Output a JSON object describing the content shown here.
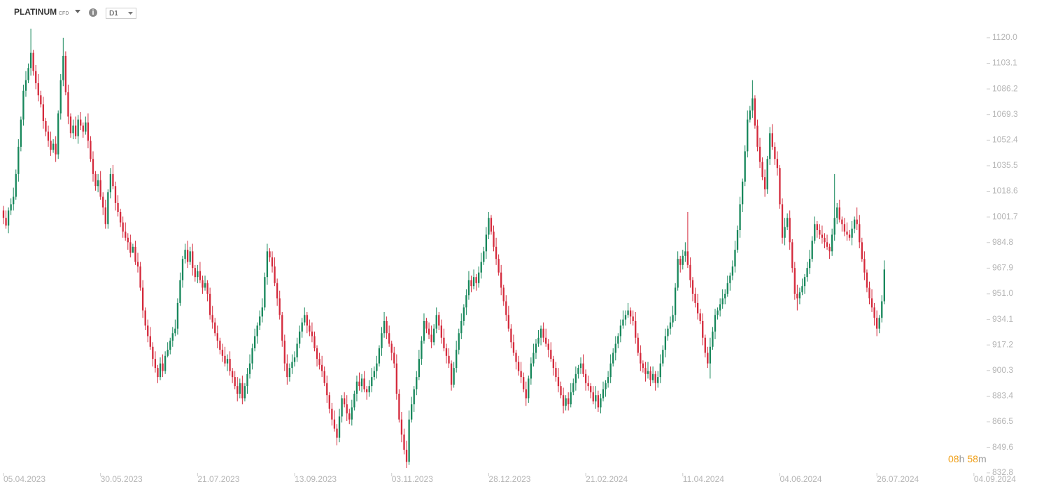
{
  "header": {
    "symbol": "PLATINUM",
    "instrument_type": "CFD",
    "timeframe": "D1"
  },
  "countdown": {
    "hours": "08",
    "hours_unit": "h",
    "minutes": "58",
    "minutes_unit": "m"
  },
  "chart_data": {
    "type": "candlestick",
    "up_color": "#17875b",
    "down_color": "#d42a3c",
    "xlim": [
      -1.4,
      393.7
    ],
    "xticks": [
      {
        "value": 0,
        "label": "05.04.2023"
      },
      {
        "value": 39,
        "label": "30.05.2023"
      },
      {
        "value": 78,
        "label": "21.07.2023"
      },
      {
        "value": 117,
        "label": "13.09.2023"
      },
      {
        "value": 156,
        "label": "03.11.2023"
      },
      {
        "value": 195,
        "label": "28.12.2023"
      },
      {
        "value": 234,
        "label": "21.02.2024"
      },
      {
        "value": 273,
        "label": "11.04.2024"
      },
      {
        "value": 312,
        "label": "04.06.2024"
      },
      {
        "value": 351,
        "label": "26.07.2024"
      },
      {
        "value": 390,
        "label": "04.09.2024"
      }
    ],
    "ylim": [
      832.8,
      1144.9
    ],
    "yticks": [
      {
        "value": 1120,
        "label": "1120.0"
      },
      {
        "value": 1103.1,
        "label": "1103.1"
      },
      {
        "value": 1086.2,
        "label": "1086.2"
      },
      {
        "value": 1069.3,
        "label": "1069.3"
      },
      {
        "value": 1052.4,
        "label": "1052.4"
      },
      {
        "value": 1035.5,
        "label": "1035.5"
      },
      {
        "value": 1018.6,
        "label": "1018.6"
      },
      {
        "value": 1001.7,
        "label": "1001.7"
      },
      {
        "value": 984.8,
        "label": "984.8"
      },
      {
        "value": 967.9,
        "label": "967.9"
      },
      {
        "value": 951,
        "label": "951.0"
      },
      {
        "value": 934.1,
        "label": "934.1"
      },
      {
        "value": 917.2,
        "label": "917.2"
      },
      {
        "value": 900.3,
        "label": "900.3"
      },
      {
        "value": 883.4,
        "label": "883.4"
      },
      {
        "value": 866.5,
        "label": "866.5"
      },
      {
        "value": 849.6,
        "label": "849.6"
      },
      {
        "value": 832.8,
        "label": "832.8"
      }
    ],
    "open": [
      1006,
      1001,
      996,
      1006,
      1010,
      1015,
      1030,
      1048,
      1066,
      1085,
      1092,
      1100,
      1110,
      1098,
      1090,
      1082,
      1076,
      1065,
      1058,
      1052,
      1046,
      1050,
      1043,
      1070,
      1092,
      1108,
      1084,
      1068,
      1057,
      1062,
      1055,
      1066,
      1062,
      1058,
      1064,
      1052,
      1040,
      1030,
      1022,
      1026,
      1015,
      1008,
      997,
      1018,
      1030,
      1022,
      1011,
      1005,
      998,
      992,
      988,
      985,
      978,
      982,
      972,
      969,
      955,
      940,
      930,
      923,
      916,
      908,
      902,
      896,
      905,
      900,
      910,
      914,
      920,
      925,
      928,
      945,
      960,
      974,
      980,
      972,
      979,
      968,
      962,
      966,
      960,
      955,
      958,
      951,
      937,
      932,
      925,
      920,
      914,
      910,
      905,
      908,
      900,
      896,
      890,
      885,
      892,
      882,
      890,
      898,
      905,
      915,
      923,
      930,
      936,
      942,
      962,
      979,
      975,
      969,
      958,
      948,
      937,
      920,
      905,
      896,
      902,
      906,
      909,
      918,
      926,
      932,
      937,
      930,
      926,
      923,
      915,
      908,
      904,
      900,
      892,
      884,
      875,
      868,
      862,
      856,
      870,
      882,
      878,
      872,
      868,
      876,
      885,
      893,
      890,
      895,
      888,
      886,
      890,
      896,
      900,
      905,
      915,
      925,
      933,
      925,
      918,
      912,
      905,
      885,
      868,
      858,
      848,
      840,
      868,
      878,
      888,
      896,
      908,
      920,
      933,
      928,
      924,
      919,
      928,
      937,
      930,
      922,
      915,
      910,
      905,
      891,
      902,
      914,
      925,
      933,
      942,
      950,
      960,
      956,
      962,
      958,
      965,
      972,
      979,
      990,
      1001,
      992,
      982,
      974,
      965,
      955,
      946,
      937,
      928,
      919,
      912,
      906,
      900,
      896,
      888,
      882,
      895,
      905,
      912,
      918,
      922,
      928,
      922,
      918,
      914,
      908,
      902,
      896,
      890,
      884,
      877,
      882,
      878,
      886,
      892,
      898,
      902,
      905,
      898,
      892,
      890,
      886,
      880,
      884,
      876,
      882,
      888,
      892,
      896,
      905,
      912,
      918,
      923,
      930,
      934,
      937,
      940,
      936,
      933,
      922,
      912,
      905,
      902,
      898,
      900,
      894,
      898,
      892,
      896,
      905,
      914,
      923,
      928,
      932,
      937,
      955,
      974,
      970,
      976,
      979,
      970,
      960,
      951,
      945,
      938,
      933,
      922,
      912,
      905,
      916,
      926,
      937,
      940,
      944,
      948,
      951,
      958,
      963,
      969,
      980,
      993,
      1010,
      1025,
      1045,
      1066,
      1072,
      1080,
      1062,
      1048,
      1038,
      1028,
      1020,
      1040,
      1057,
      1048,
      1040,
      1034,
      1010,
      988,
      995,
      1001,
      985,
      968,
      951,
      948,
      952,
      956,
      962,
      968,
      974,
      986,
      997,
      993,
      990,
      988,
      985,
      982,
      979,
      990,
      1001,
      1008,
      1000,
      997,
      992,
      990,
      988,
      994,
      1000,
      997,
      985,
      974,
      965,
      955,
      948,
      942,
      935,
      928,
      935,
      946
    ],
    "high": [
      1009,
      1006,
      1008,
      1014,
      1021,
      1033,
      1053,
      1068,
      1089,
      1098,
      1103,
      1126,
      1112,
      1102,
      1096,
      1085,
      1081,
      1067,
      1062,
      1058,
      1053,
      1055,
      1072,
      1096,
      1120,
      1111,
      1089,
      1070,
      1066,
      1068,
      1069,
      1071,
      1064,
      1068,
      1070,
      1055,
      1045,
      1032,
      1030,
      1032,
      1018,
      1013,
      1020,
      1034,
      1036,
      1025,
      1016,
      1007,
      1002,
      998,
      991,
      990,
      984,
      986,
      978,
      972,
      960,
      942,
      934,
      929,
      919,
      913,
      904,
      909,
      911,
      913,
      919,
      922,
      929,
      934,
      948,
      965,
      976,
      984,
      986,
      982,
      984,
      970,
      970,
      972,
      963,
      963,
      960,
      955,
      943,
      935,
      930,
      922,
      918,
      916,
      911,
      913,
      902,
      900,
      896,
      895,
      897,
      892,
      902,
      911,
      918,
      928,
      932,
      940,
      948,
      965,
      984,
      981,
      979,
      975,
      961,
      953,
      939,
      924,
      911,
      905,
      911,
      913,
      922,
      930,
      935,
      942,
      939,
      934,
      932,
      926,
      917,
      912,
      910,
      903,
      897,
      886,
      879,
      874,
      865,
      875,
      884,
      886,
      884,
      875,
      881,
      887,
      897,
      899,
      898,
      900,
      890,
      894,
      902,
      903,
      910,
      917,
      929,
      939,
      936,
      930,
      920,
      916,
      911,
      888,
      873,
      862,
      854,
      874,
      883,
      890,
      900,
      914,
      923,
      938,
      935,
      932,
      930,
      931,
      942,
      939,
      934,
      928,
      918,
      915,
      907,
      906,
      920,
      928,
      938,
      944,
      954,
      966,
      963,
      967,
      964,
      969,
      978,
      982,
      995,
      1005,
      1003,
      996,
      988,
      977,
      970,
      957,
      950,
      943,
      931,
      924,
      914,
      910,
      906,
      899,
      893,
      897,
      909,
      918,
      921,
      927,
      930,
      932,
      928,
      921,
      919,
      910,
      906,
      902,
      893,
      889,
      884,
      886,
      892,
      895,
      903,
      904,
      909,
      911,
      901,
      897,
      892,
      890,
      890,
      887,
      885,
      893,
      894,
      900,
      911,
      915,
      923,
      925,
      934,
      940,
      940,
      945,
      942,
      940,
      939,
      925,
      917,
      907,
      906,
      906,
      903,
      903,
      900,
      900,
      911,
      917,
      928,
      930,
      936,
      943,
      958,
      979,
      976,
      980,
      985,
      1005,
      975,
      962,
      955,
      951,
      941,
      938,
      924,
      916,
      922,
      929,
      941,
      942,
      948,
      954,
      954,
      963,
      965,
      973,
      986,
      996,
      1015,
      1027,
      1049,
      1072,
      1075,
      1092,
      1082,
      1066,
      1054,
      1041,
      1033,
      1042,
      1061,
      1063,
      1051,
      1045,
      1036,
      1014,
      1001,
      1004,
      1006,
      987,
      972,
      957,
      955,
      961,
      964,
      972,
      980,
      989,
      1002,
      999,
      997,
      996,
      991,
      990,
      984,
      994,
      1030,
      1011,
      1013,
      1002,
      1001,
      998,
      993,
      999,
      1002,
      1008,
      1003,
      988,
      979,
      967,
      959,
      954,
      945,
      940,
      937,
      950,
      973
    ],
    "low": [
      997,
      994,
      991,
      1003,
      1006,
      1013,
      1025,
      1045,
      1062,
      1081,
      1090,
      1095,
      1095,
      1086,
      1078,
      1074,
      1060,
      1055,
      1048,
      1042,
      1044,
      1038,
      1040,
      1066,
      1088,
      1082,
      1063,
      1054,
      1053,
      1053,
      1050,
      1059,
      1054,
      1056,
      1047,
      1038,
      1025,
      1019,
      1018,
      1013,
      1003,
      994,
      994,
      1014,
      1020,
      1006,
      1002,
      995,
      988,
      986,
      980,
      975,
      978,
      970,
      965,
      953,
      935,
      927,
      919,
      914,
      903,
      899,
      892,
      894,
      896,
      898,
      909,
      911,
      916,
      923,
      924,
      943,
      955,
      971,
      968,
      970,
      963,
      959,
      958,
      958,
      951,
      953,
      946,
      934,
      928,
      923,
      915,
      911,
      906,
      903,
      900,
      897,
      892,
      888,
      880,
      882,
      878,
      880,
      885,
      895,
      901,
      913,
      918,
      927,
      932,
      940,
      957,
      972,
      965,
      956,
      943,
      934,
      916,
      900,
      891,
      893,
      898,
      903,
      906,
      915,
      922,
      930,
      925,
      923,
      919,
      913,
      903,
      901,
      896,
      890,
      879,
      872,
      864,
      860,
      851,
      853,
      866,
      876,
      867,
      865,
      864,
      874,
      880,
      887,
      886,
      886,
      881,
      883,
      886,
      894,
      895,
      903,
      910,
      922,
      921,
      916,
      907,
      902,
      881,
      866,
      853,
      845,
      836,
      838,
      866,
      873,
      884,
      894,
      904,
      918,
      925,
      921,
      915,
      917,
      925,
      927,
      918,
      913,
      905,
      902,
      887,
      889,
      899,
      911,
      921,
      930,
      937,
      947,
      952,
      954,
      953,
      955,
      961,
      970,
      974,
      987,
      990,
      979,
      970,
      963,
      950,
      943,
      933,
      926,
      915,
      910,
      901,
      897,
      892,
      886,
      877,
      879,
      891,
      903,
      908,
      916,
      917,
      919,
      916,
      909,
      906,
      897,
      893,
      886,
      882,
      872,
      874,
      874,
      876,
      884,
      887,
      895,
      898,
      896,
      887,
      887,
      882,
      878,
      875,
      873,
      872,
      880,
      883,
      889,
      892,
      903,
      907,
      915,
      919,
      928,
      930,
      935,
      931,
      930,
      918,
      910,
      900,
      899,
      893,
      895,
      890,
      892,
      887,
      889,
      892,
      903,
      909,
      920,
      924,
      929,
      933,
      953,
      965,
      967,
      972,
      968,
      955,
      946,
      942,
      934,
      931,
      917,
      909,
      902,
      895,
      914,
      921,
      934,
      936,
      941,
      944,
      949,
      953,
      960,
      965,
      978,
      988,
      1005,
      1022,
      1041,
      1064,
      1067,
      1060,
      1045,
      1034,
      1026,
      1015,
      1017,
      1036,
      1046,
      1036,
      1029,
      1007,
      984,
      983,
      993,
      980,
      965,
      947,
      940,
      944,
      950,
      951,
      959,
      964,
      972,
      984,
      988,
      987,
      984,
      981,
      980,
      974,
      976,
      986,
      997,
      998,
      992,
      989,
      986,
      986,
      983,
      991,
      993,
      981,
      972,
      960,
      952,
      944,
      939,
      930,
      923,
      925,
      932,
      944
    ],
    "close": [
      1001,
      996,
      1006,
      1010,
      1015,
      1030,
      1048,
      1066,
      1085,
      1092,
      1100,
      1110,
      1098,
      1090,
      1082,
      1076,
      1065,
      1058,
      1052,
      1046,
      1050,
      1043,
      1070,
      1092,
      1108,
      1084,
      1068,
      1057,
      1062,
      1055,
      1066,
      1062,
      1058,
      1064,
      1052,
      1040,
      1030,
      1022,
      1026,
      1015,
      1008,
      997,
      1018,
      1030,
      1022,
      1011,
      1005,
      998,
      992,
      988,
      985,
      978,
      982,
      972,
      969,
      955,
      940,
      930,
      923,
      916,
      908,
      902,
      896,
      905,
      900,
      910,
      914,
      920,
      925,
      928,
      945,
      960,
      974,
      980,
      972,
      979,
      968,
      962,
      966,
      960,
      955,
      958,
      951,
      937,
      932,
      925,
      920,
      914,
      910,
      905,
      908,
      900,
      896,
      890,
      885,
      892,
      882,
      890,
      898,
      905,
      915,
      923,
      930,
      936,
      942,
      962,
      979,
      975,
      969,
      958,
      948,
      937,
      920,
      905,
      896,
      902,
      906,
      909,
      918,
      926,
      932,
      937,
      930,
      926,
      923,
      915,
      908,
      904,
      900,
      892,
      884,
      875,
      868,
      862,
      856,
      870,
      882,
      878,
      872,
      868,
      876,
      885,
      893,
      890,
      895,
      888,
      886,
      890,
      896,
      900,
      905,
      915,
      925,
      933,
      925,
      918,
      912,
      905,
      885,
      868,
      858,
      848,
      840,
      868,
      878,
      888,
      896,
      908,
      920,
      933,
      928,
      924,
      919,
      928,
      937,
      930,
      922,
      915,
      910,
      905,
      891,
      902,
      914,
      925,
      933,
      942,
      950,
      960,
      956,
      962,
      958,
      965,
      972,
      979,
      990,
      1001,
      992,
      982,
      974,
      965,
      955,
      946,
      937,
      928,
      919,
      912,
      906,
      900,
      896,
      888,
      882,
      895,
      905,
      912,
      918,
      922,
      928,
      922,
      918,
      914,
      908,
      902,
      896,
      890,
      884,
      877,
      882,
      878,
      886,
      892,
      898,
      902,
      905,
      898,
      892,
      890,
      886,
      880,
      884,
      876,
      882,
      888,
      892,
      896,
      905,
      912,
      918,
      923,
      930,
      934,
      937,
      940,
      936,
      933,
      922,
      912,
      905,
      902,
      898,
      900,
      894,
      898,
      892,
      896,
      905,
      914,
      923,
      928,
      932,
      937,
      955,
      974,
      970,
      976,
      979,
      970,
      960,
      951,
      945,
      938,
      933,
      922,
      912,
      905,
      916,
      926,
      937,
      940,
      944,
      948,
      951,
      958,
      963,
      969,
      980,
      993,
      1010,
      1025,
      1045,
      1066,
      1072,
      1080,
      1062,
      1048,
      1038,
      1028,
      1020,
      1040,
      1057,
      1048,
      1040,
      1034,
      1010,
      988,
      995,
      1001,
      985,
      968,
      951,
      948,
      952,
      956,
      962,
      968,
      974,
      986,
      997,
      993,
      990,
      988,
      985,
      982,
      979,
      990,
      1001,
      1008,
      1000,
      997,
      992,
      990,
      988,
      994,
      1000,
      997,
      985,
      974,
      965,
      955,
      948,
      942,
      935,
      928,
      935,
      946,
      967
    ]
  }
}
